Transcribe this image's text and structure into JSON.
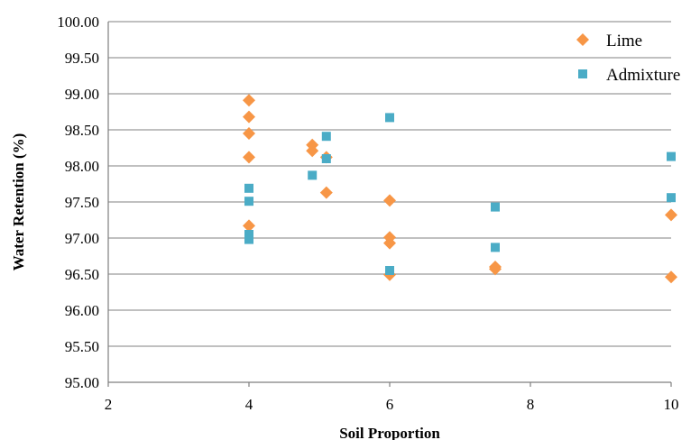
{
  "chart_data": {
    "type": "scatter",
    "xlabel": "Soil Proportion",
    "ylabel": "Water Retention (%)",
    "xlim": [
      2,
      10
    ],
    "ylim": [
      95.0,
      100.0
    ],
    "x_ticks": [
      "2",
      "4",
      "6",
      "8",
      "10"
    ],
    "y_ticks": [
      "95.00",
      "95.50",
      "96.00",
      "96.50",
      "97.00",
      "97.50",
      "98.00",
      "98.50",
      "99.00",
      "99.50",
      "100.00"
    ],
    "grid": "horizontal",
    "legend_position": "top-right",
    "series": [
      {
        "name": "Lime",
        "marker": "diamond",
        "color": "#F79646",
        "points": [
          [
            4,
            98.91
          ],
          [
            4,
            98.68
          ],
          [
            4,
            98.45
          ],
          [
            4,
            98.12
          ],
          [
            4,
            97.17
          ],
          [
            4.9,
            98.29
          ],
          [
            4.9,
            98.21
          ],
          [
            5.1,
            98.12
          ],
          [
            5.1,
            97.63
          ],
          [
            6,
            97.52
          ],
          [
            6,
            97.01
          ],
          [
            6,
            96.93
          ],
          [
            6,
            96.49
          ],
          [
            7.5,
            96.6
          ],
          [
            7.5,
            96.57
          ],
          [
            10,
            97.32
          ],
          [
            10,
            96.46
          ]
        ]
      },
      {
        "name": "Admixture",
        "marker": "square",
        "color": "#4BACC6",
        "points": [
          [
            4,
            97.69
          ],
          [
            4,
            97.51
          ],
          [
            4,
            97.05
          ],
          [
            4,
            96.98
          ],
          [
            4.9,
            97.87
          ],
          [
            5.1,
            98.41
          ],
          [
            5.1,
            98.1
          ],
          [
            6,
            98.67
          ],
          [
            6,
            96.55
          ],
          [
            7.5,
            97.43
          ],
          [
            7.5,
            96.87
          ],
          [
            10,
            98.13
          ],
          [
            10,
            97.56
          ]
        ]
      }
    ]
  }
}
